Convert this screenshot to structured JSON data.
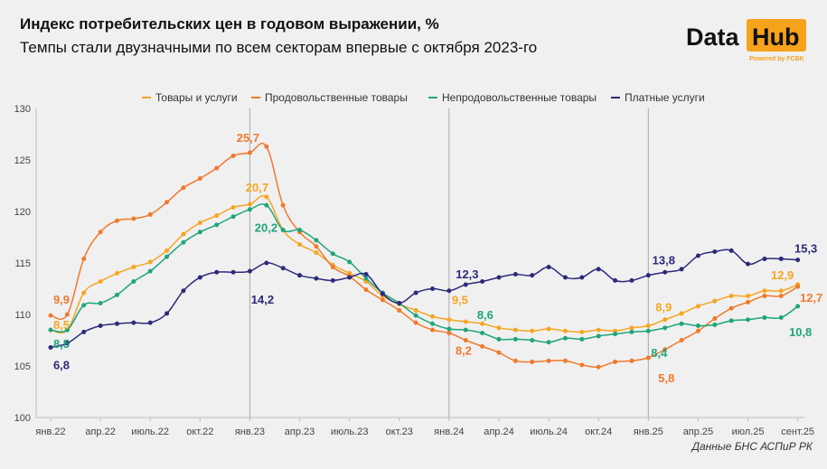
{
  "header": {
    "title": "Индекс потребительских цен в годовом выражении, %",
    "subtitle": "Темпы стали двузначными по всем секторам впервые с октября 2023-го"
  },
  "logo": {
    "word1": "Data",
    "word2": "Hub",
    "tagline": "Powered by FCBK",
    "accent": "#F7A21B"
  },
  "source": "Данные БНС АСПиР РК",
  "chart_data": {
    "type": "line",
    "title": "Индекс потребительских цен в годовом выражении, %",
    "xlabel": "",
    "ylabel": "",
    "ylim": [
      100,
      130
    ],
    "yticks": [
      100,
      105,
      110,
      115,
      120,
      125,
      130
    ],
    "grid": "vertical lines at January of each year",
    "legend_position": "top",
    "x_ticks": [
      {
        "index": 0,
        "label": "янв.22"
      },
      {
        "index": 3,
        "label": "апр.22"
      },
      {
        "index": 6,
        "label": "июль.22"
      },
      {
        "index": 9,
        "label": "окт.22"
      },
      {
        "index": 12,
        "label": "янв.23"
      },
      {
        "index": 15,
        "label": "апр.23"
      },
      {
        "index": 18,
        "label": "июль.23"
      },
      {
        "index": 21,
        "label": "окт.23"
      },
      {
        "index": 24,
        "label": "янв.24"
      },
      {
        "index": 27,
        "label": "апр.24"
      },
      {
        "index": 30,
        "label": "июль.24"
      },
      {
        "index": 33,
        "label": "окт.24"
      },
      {
        "index": 36,
        "label": "янв.25"
      },
      {
        "index": 39,
        "label": "апр.25"
      },
      {
        "index": 42,
        "label": "июл.25"
      },
      {
        "index": 45,
        "label": "сент.25"
      }
    ],
    "gridline_indices": [
      12,
      24,
      36
    ],
    "series": [
      {
        "name": "Товары и услуги",
        "color": "#F5A623",
        "values": [
          108.5,
          108.5,
          112.1,
          113.2,
          114.0,
          114.6,
          115.1,
          116.2,
          117.8,
          118.9,
          119.6,
          120.4,
          120.7,
          121.4,
          118.2,
          116.8,
          116.0,
          114.8,
          114.0,
          113.2,
          111.8,
          111.0,
          110.4,
          109.8,
          109.5,
          109.3,
          109.1,
          108.7,
          108.5,
          108.4,
          108.6,
          108.4,
          108.3,
          108.5,
          108.4,
          108.7,
          108.9,
          109.5,
          110.1,
          110.8,
          111.3,
          111.8,
          111.8,
          112.3,
          112.3,
          112.9
        ]
      },
      {
        "name": "Продовольственные товары",
        "color": "#EF7A2C",
        "values": [
          109.9,
          110.0,
          115.4,
          118.0,
          119.1,
          119.3,
          119.7,
          120.9,
          122.3,
          123.2,
          124.2,
          125.4,
          125.7,
          126.3,
          120.6,
          118.0,
          116.6,
          114.6,
          113.7,
          112.4,
          111.4,
          110.4,
          109.2,
          108.5,
          108.2,
          107.5,
          106.9,
          106.3,
          105.5,
          105.4,
          105.5,
          105.5,
          105.1,
          104.9,
          105.4,
          105.5,
          105.8,
          106.6,
          107.5,
          108.4,
          109.6,
          110.6,
          111.2,
          111.8,
          111.8,
          112.7
        ]
      },
      {
        "name": "Непродовольственные товары",
        "color": "#1FA57A",
        "values": [
          108.5,
          108.5,
          110.9,
          111.1,
          111.9,
          113.2,
          114.2,
          115.6,
          117.0,
          118.0,
          118.7,
          119.5,
          120.2,
          120.6,
          118.2,
          118.2,
          117.2,
          115.9,
          115.1,
          113.5,
          112.1,
          111.1,
          109.9,
          109.1,
          108.6,
          108.5,
          108.2,
          107.6,
          107.6,
          107.5,
          107.3,
          107.7,
          107.6,
          107.9,
          108.1,
          108.3,
          108.4,
          108.7,
          109.1,
          108.9,
          109.0,
          109.4,
          109.5,
          109.7,
          109.7,
          110.8
        ]
      },
      {
        "name": "Платные услуги",
        "color": "#2B2A7A",
        "values": [
          106.8,
          107.2,
          108.3,
          108.9,
          109.1,
          109.2,
          109.2,
          110.1,
          112.3,
          113.6,
          114.1,
          114.1,
          114.2,
          115.0,
          114.5,
          113.8,
          113.5,
          113.3,
          113.6,
          113.9,
          112.0,
          111.1,
          112.1,
          112.5,
          112.3,
          112.9,
          113.2,
          113.6,
          113.9,
          113.8,
          114.6,
          113.6,
          113.6,
          114.4,
          113.3,
          113.3,
          113.8,
          114.1,
          114.4,
          115.7,
          116.1,
          116.2,
          114.9,
          115.4,
          115.4,
          115.3
        ]
      }
    ],
    "annotations": [
      {
        "series": 1,
        "index": 0,
        "text": "9,9"
      },
      {
        "series": 0,
        "index": 0,
        "text": "8,5"
      },
      {
        "series": 2,
        "index": 0,
        "text": "8,5"
      },
      {
        "series": 3,
        "index": 0,
        "text": "6,8"
      },
      {
        "series": 1,
        "index": 12,
        "text": "25,7"
      },
      {
        "series": 0,
        "index": 12,
        "text": "20,7"
      },
      {
        "series": 2,
        "index": 12,
        "text": "20,2"
      },
      {
        "series": 3,
        "index": 12,
        "text": "14,2"
      },
      {
        "series": 3,
        "index": 24,
        "text": "12,3"
      },
      {
        "series": 0,
        "index": 24,
        "text": "9,5"
      },
      {
        "series": 2,
        "index": 24,
        "text": "8,6"
      },
      {
        "series": 1,
        "index": 24,
        "text": "8,2"
      },
      {
        "series": 3,
        "index": 36,
        "text": "13,8"
      },
      {
        "series": 0,
        "index": 36,
        "text": "8,9"
      },
      {
        "series": 2,
        "index": 36,
        "text": "8,4"
      },
      {
        "series": 1,
        "index": 36,
        "text": "5,8"
      },
      {
        "series": 3,
        "index": 45,
        "text": "15,3"
      },
      {
        "series": 0,
        "index": 45,
        "text": "12,9"
      },
      {
        "series": 1,
        "index": 45,
        "text": "12,7"
      },
      {
        "series": 2,
        "index": 45,
        "text": "10,8"
      }
    ]
  }
}
